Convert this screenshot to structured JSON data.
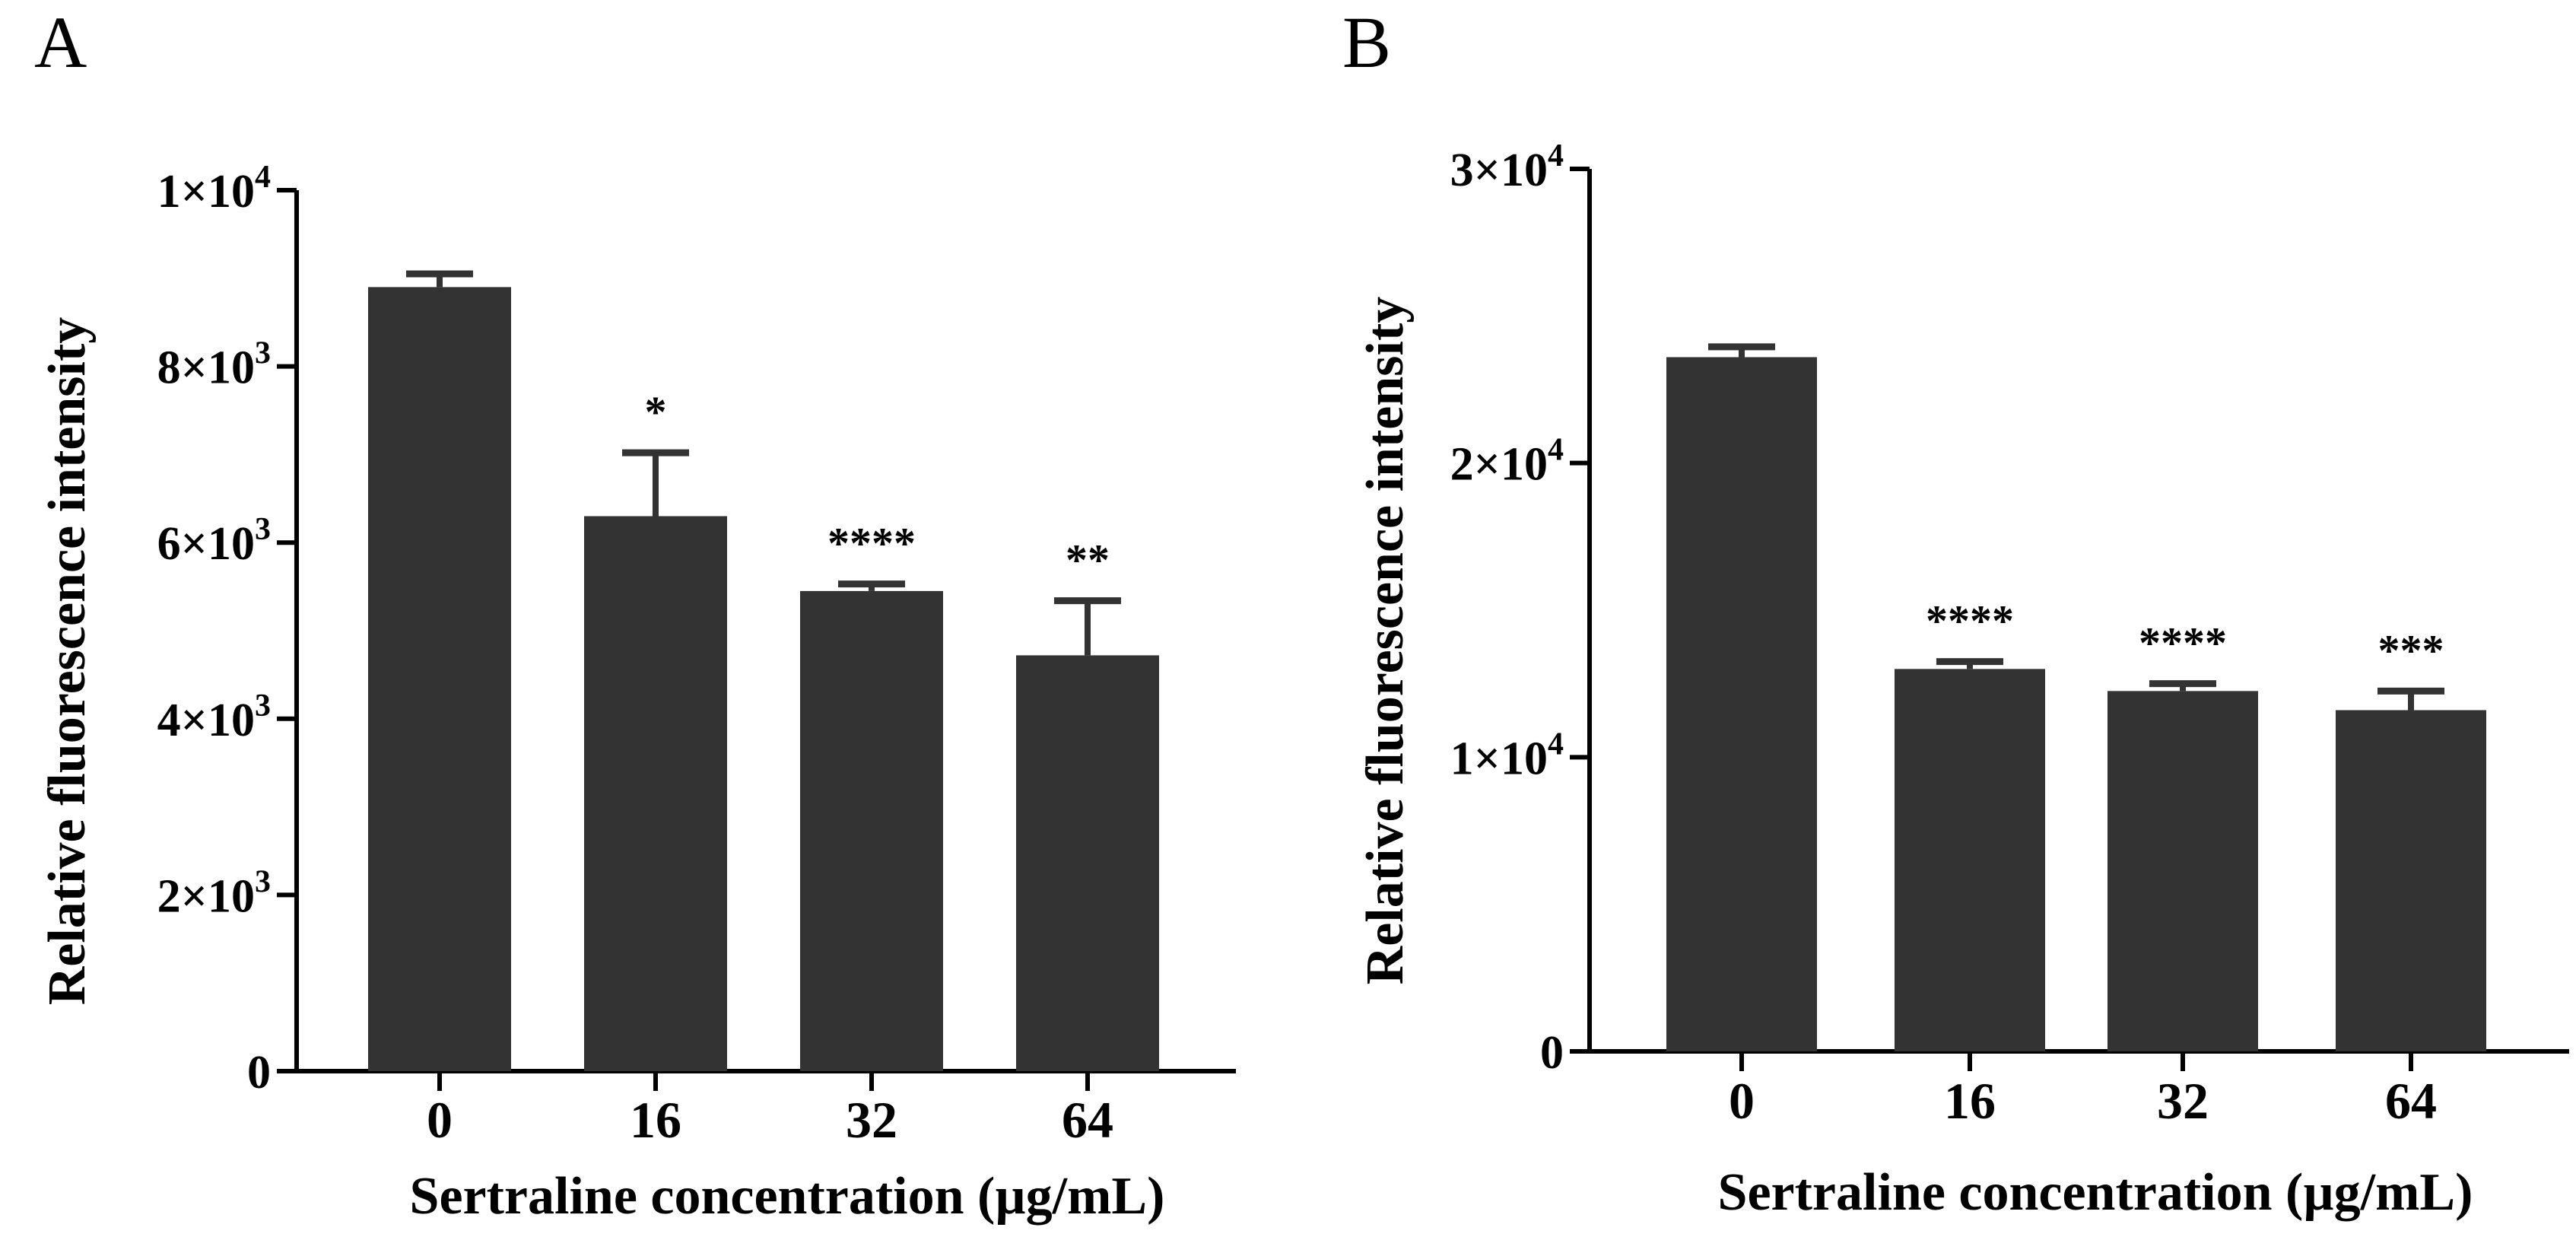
{
  "chart_data": [
    {
      "panel": "A",
      "type": "bar",
      "categories": [
        "0",
        "16",
        "32",
        "64"
      ],
      "values": [
        8900,
        6300,
        5450,
        4720
      ],
      "errors": [
        150,
        720,
        80,
        620
      ],
      "significance": [
        "",
        "*",
        "****",
        "**"
      ],
      "ylim": [
        0,
        10000
      ],
      "yticks": [
        {
          "value": 0,
          "base": "0",
          "exp": ""
        },
        {
          "value": 2000,
          "base": "2×10",
          "exp": "3"
        },
        {
          "value": 4000,
          "base": "4×10",
          "exp": "3"
        },
        {
          "value": 6000,
          "base": "6×10",
          "exp": "3"
        },
        {
          "value": 8000,
          "base": "8×10",
          "exp": "3"
        },
        {
          "value": 10000,
          "base": "1×10",
          "exp": "4"
        }
      ],
      "xlabel": "Sertraline concentration  (µg/mL)",
      "ylabel": "Relative fluorescence intensity",
      "bar_color": "#333333"
    },
    {
      "panel": "B",
      "type": "bar",
      "categories": [
        "0",
        "16",
        "32",
        "64"
      ],
      "values": [
        23600,
        13000,
        12250,
        11600
      ],
      "errors": [
        350,
        250,
        250,
        650
      ],
      "significance": [
        "",
        "****",
        "****",
        "***"
      ],
      "ylim": [
        0,
        30000
      ],
      "yticks": [
        {
          "value": 0,
          "base": "0",
          "exp": ""
        },
        {
          "value": 10000,
          "base": "1×10",
          "exp": "4"
        },
        {
          "value": 20000,
          "base": "2×10",
          "exp": "4"
        },
        {
          "value": 30000,
          "base": "3×10",
          "exp": "4"
        }
      ],
      "xlabel": "Sertraline concentration  (µg/mL)",
      "ylabel": "Relative fluorescence intensity",
      "bar_color": "#333333"
    }
  ]
}
